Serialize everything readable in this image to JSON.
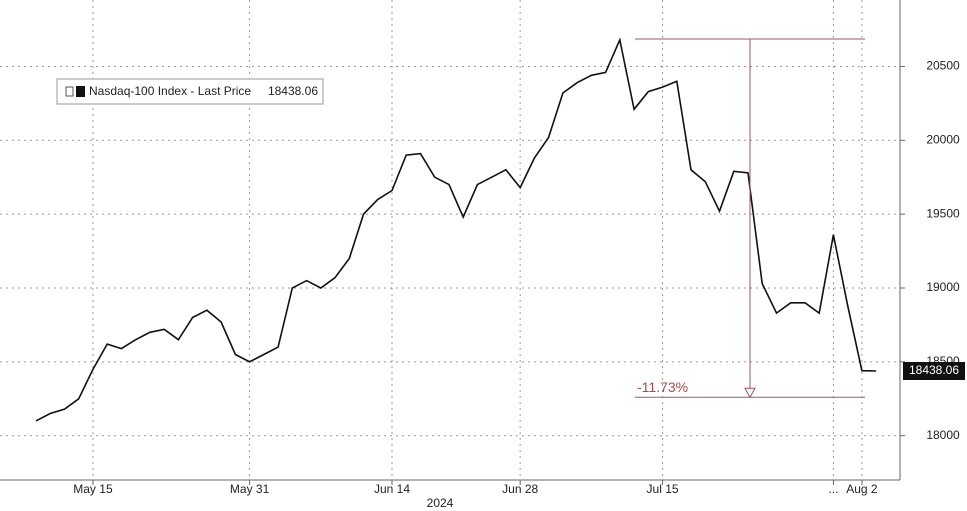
{
  "chart_data": {
    "type": "line",
    "categories": [
      null,
      null,
      null,
      null,
      "May 15",
      null,
      null,
      null,
      null,
      null,
      null,
      null,
      null,
      null,
      null,
      "May 31",
      null,
      null,
      null,
      null,
      null,
      null,
      null,
      null,
      null,
      "Jun 14",
      null,
      null,
      null,
      null,
      null,
      null,
      null,
      null,
      "Jun 28",
      null,
      null,
      null,
      null,
      null,
      null,
      null,
      null,
      null,
      "Jul 15",
      null,
      null,
      null,
      null,
      null,
      null,
      null,
      null,
      null,
      null,
      null,
      "...",
      null,
      "Aug 2",
      null
    ],
    "x_group_label": "2024",
    "series": [
      {
        "name": "Nasdaq-100 Index - Last Price",
        "color": "#111111",
        "values": [
          18100,
          18150,
          18180,
          18250,
          18450,
          18620,
          18590,
          18650,
          18700,
          18720,
          18650,
          18800,
          18850,
          18770,
          18550,
          18500,
          18550,
          18600,
          19000,
          19050,
          19000,
          19070,
          19200,
          19500,
          19600,
          19660,
          19900,
          19910,
          19750,
          19700,
          19480,
          19700,
          19750,
          19800,
          19680,
          19880,
          20020,
          20320,
          20390,
          20440,
          20460,
          20680,
          20210,
          20330,
          20360,
          20400,
          19800,
          19720,
          19520,
          19790,
          19780,
          19030,
          18830,
          18900,
          18900,
          18830,
          19360,
          18880,
          18440,
          18438.06
        ]
      }
    ],
    "ylim": [
      17700,
      20950
    ],
    "yticks": [
      18000,
      18500,
      19000,
      19500,
      20000,
      20500
    ],
    "grid": true,
    "annotation": {
      "label": "-11.73%",
      "from": 20686,
      "to": 18260
    }
  }
}
